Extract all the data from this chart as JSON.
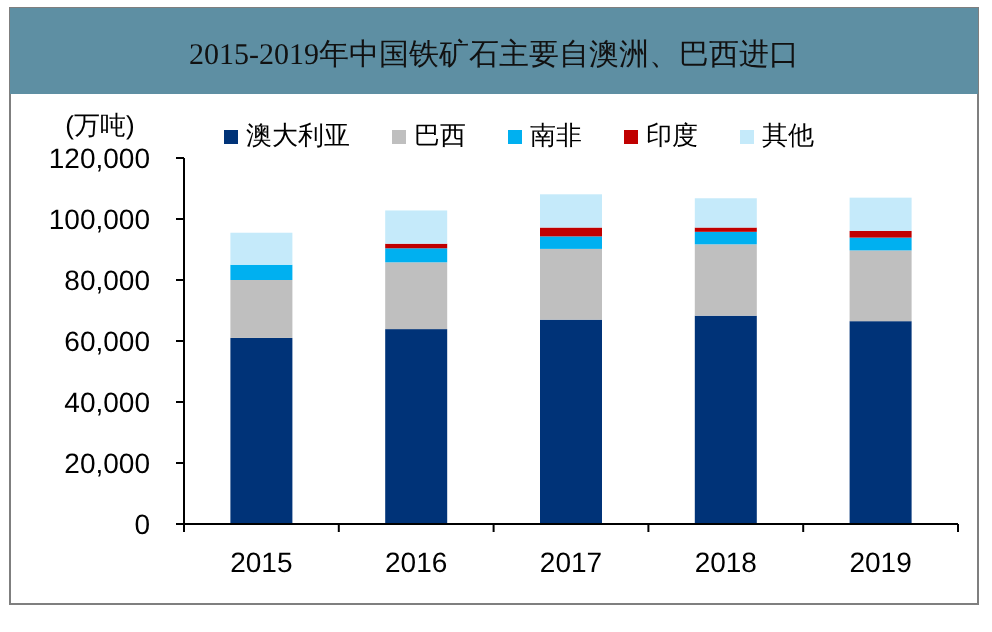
{
  "chart_data": {
    "type": "bar",
    "title": "2015-2019年中国铁矿石主要自澳洲、巴西进口",
    "ylabel": "(万吨)",
    "categories": [
      "2015",
      "2016",
      "2017",
      "2018",
      "2019"
    ],
    "stacked": true,
    "series": [
      {
        "name": "澳大利亚",
        "color": "#003378",
        "values": [
          61000,
          63900,
          67000,
          68300,
          66500
        ]
      },
      {
        "name": "巴西",
        "color": "#bfbfbf",
        "values": [
          19000,
          21900,
          23200,
          23400,
          23200
        ]
      },
      {
        "name": "南非",
        "color": "#00b0f0",
        "values": [
          5000,
          4600,
          4100,
          4100,
          4200
        ]
      },
      {
        "name": "印度",
        "color": "#c00000",
        "values": [
          0,
          1500,
          2900,
          1400,
          2200
        ]
      },
      {
        "name": "其他",
        "color": "#c5eafa",
        "values": [
          10500,
          10900,
          10900,
          9600,
          10900
        ]
      }
    ],
    "ylim": [
      0,
      120000
    ],
    "yticks": [
      {
        "value": 0,
        "label": "0"
      },
      {
        "value": 20000,
        "label": "20,000"
      },
      {
        "value": 40000,
        "label": "40,000"
      },
      {
        "value": 60000,
        "label": "60,000"
      },
      {
        "value": 80000,
        "label": "80,000"
      },
      {
        "value": 100000,
        "label": "100,000"
      },
      {
        "value": 120000,
        "label": "120,000"
      }
    ],
    "legend": "top",
    "grid": false
  }
}
